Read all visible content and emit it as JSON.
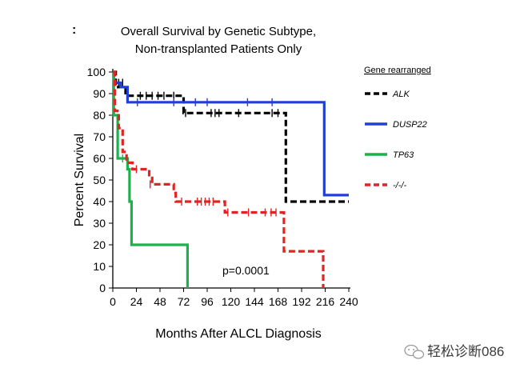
{
  "panel_label": ":",
  "chart_data": {
    "type": "line",
    "subtype": "kaplan-meier",
    "title": [
      "Overall Survival by Genetic Subtype,",
      "Non-transplanted Patients Only"
    ],
    "xlabel": "Months After ALCL Diagnosis",
    "ylabel": "Percent Survival",
    "xlim": [
      0,
      240
    ],
    "ylim": [
      0,
      100
    ],
    "x_ticks": [
      "0",
      "24",
      "48",
      "72",
      "96",
      "120",
      "144",
      "168",
      "192",
      "216",
      "240"
    ],
    "y_ticks": [
      "0",
      "10",
      "20",
      "30",
      "40",
      "50",
      "60",
      "70",
      "80",
      "90",
      "100"
    ],
    "grid": false,
    "legend_position": "right",
    "legend_title": "Gene rearranged",
    "annotation": "p=0.0001",
    "series": [
      {
        "name": "ALK",
        "color": "#000000",
        "dash": "dashed",
        "points": [
          [
            0,
            100
          ],
          [
            3,
            100
          ],
          [
            3,
            93
          ],
          [
            13,
            93
          ],
          [
            13,
            89
          ],
          [
            72,
            89
          ],
          [
            72,
            81
          ],
          [
            176,
            81
          ],
          [
            176,
            40
          ],
          [
            240,
            40
          ]
        ],
        "censors": [
          [
            6,
            95
          ],
          [
            10,
            95
          ],
          [
            28,
            89
          ],
          [
            34,
            89
          ],
          [
            40,
            89
          ],
          [
            46,
            89
          ],
          [
            52,
            89
          ],
          [
            62,
            89
          ],
          [
            74,
            81
          ],
          [
            100,
            81
          ],
          [
            104,
            81
          ],
          [
            108,
            81
          ],
          [
            128,
            81
          ],
          [
            162,
            81
          ],
          [
            168,
            81
          ]
        ]
      },
      {
        "name": "DUSP22",
        "color": "#1f3fd6",
        "dash": "solid",
        "points": [
          [
            0,
            100
          ],
          [
            1,
            100
          ],
          [
            1,
            95
          ],
          [
            8,
            95
          ],
          [
            8,
            93
          ],
          [
            15,
            93
          ],
          [
            15,
            86
          ],
          [
            215,
            86
          ],
          [
            215,
            43
          ],
          [
            240,
            43
          ]
        ],
        "censors": [
          [
            25,
            86
          ],
          [
            62,
            86
          ],
          [
            84,
            86
          ],
          [
            96,
            86
          ],
          [
            137,
            86
          ],
          [
            162,
            86
          ]
        ]
      },
      {
        "name": "TP63",
        "color": "#1db14b",
        "dash": "solid",
        "points": [
          [
            0,
            100
          ],
          [
            1,
            100
          ],
          [
            1,
            80
          ],
          [
            5,
            80
          ],
          [
            5,
            60
          ],
          [
            15,
            60
          ],
          [
            15,
            55
          ],
          [
            17,
            55
          ],
          [
            17,
            40
          ],
          [
            19,
            40
          ],
          [
            19,
            20
          ],
          [
            76,
            20
          ],
          [
            76,
            0
          ]
        ],
        "censors": [
          [
            10,
            60
          ]
        ]
      },
      {
        "name": "-/-/-",
        "color": "#e02424",
        "dash": "dashed",
        "points": [
          [
            0,
            100
          ],
          [
            2,
            100
          ],
          [
            2,
            82
          ],
          [
            6,
            82
          ],
          [
            6,
            74
          ],
          [
            10,
            74
          ],
          [
            10,
            63
          ],
          [
            14,
            63
          ],
          [
            14,
            58
          ],
          [
            20,
            58
          ],
          [
            20,
            55
          ],
          [
            37,
            55
          ],
          [
            37,
            51
          ],
          [
            40,
            51
          ],
          [
            40,
            48
          ],
          [
            62,
            48
          ],
          [
            62,
            44
          ],
          [
            64,
            44
          ],
          [
            64,
            40
          ],
          [
            114,
            40
          ],
          [
            114,
            35
          ],
          [
            174,
            35
          ],
          [
            174,
            17
          ],
          [
            214,
            17
          ],
          [
            214,
            0
          ]
        ],
        "censors": [
          [
            24,
            55
          ],
          [
            38,
            48
          ],
          [
            70,
            40
          ],
          [
            86,
            40
          ],
          [
            90,
            40
          ],
          [
            94,
            40
          ],
          [
            98,
            40
          ],
          [
            102,
            40
          ],
          [
            117,
            35
          ],
          [
            138,
            35
          ],
          [
            155,
            35
          ],
          [
            161,
            35
          ],
          [
            166,
            35
          ]
        ]
      }
    ]
  },
  "watermark": {
    "text": "轻松诊断086",
    "icon": "wechat-logo-icon"
  }
}
